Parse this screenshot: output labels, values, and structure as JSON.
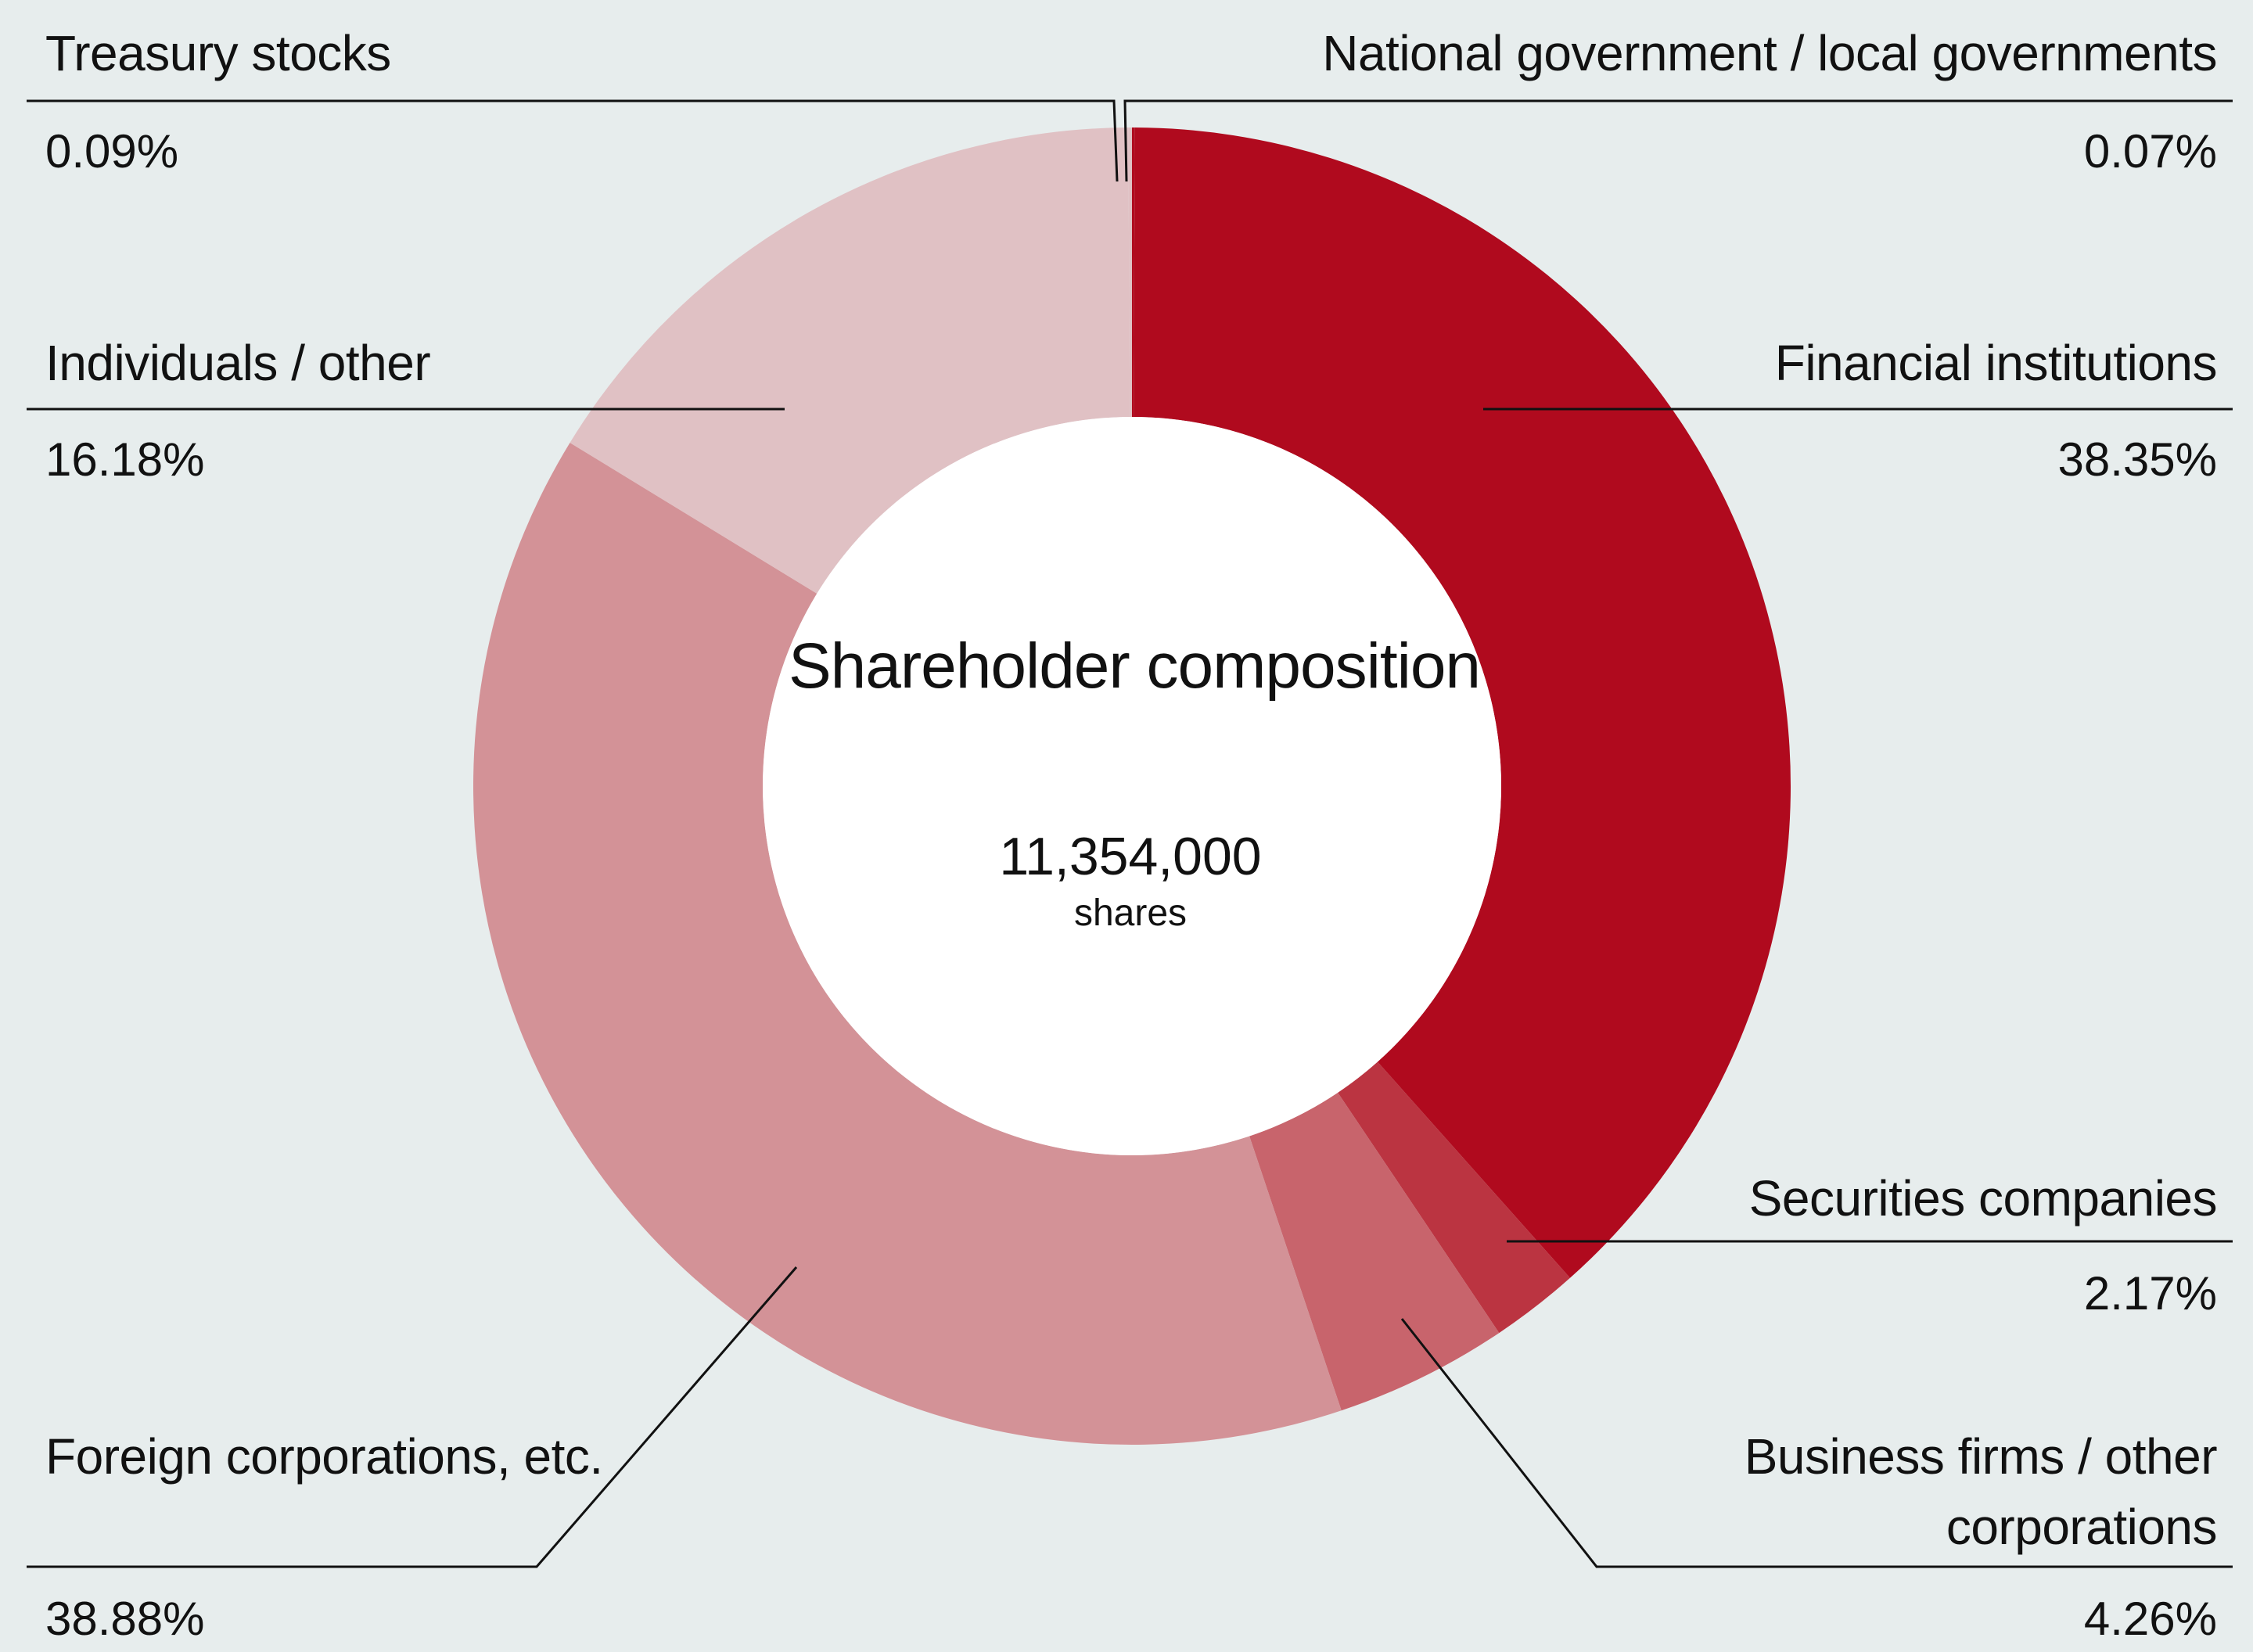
{
  "chart_data": {
    "type": "pie",
    "donut": true,
    "center": {
      "title": "Shareholder composition",
      "value": "11,354,000",
      "unit": "shares"
    },
    "slices": [
      {
        "label": "National government / local governments",
        "value": 0.07,
        "display": "0.07%",
        "color": "#b00a1e"
      },
      {
        "label": "Financial institutions",
        "value": 38.35,
        "display": "38.35%",
        "color": "#b00a1e"
      },
      {
        "label": "Securities companies",
        "value": 2.17,
        "display": "2.17%",
        "color": "#bb3441"
      },
      {
        "label": "Business firms / other corporations",
        "value": 4.26,
        "display": "4.26%",
        "color": "#c8646c"
      },
      {
        "label": "Foreign corporations, etc.",
        "value": 38.88,
        "display": "38.88%",
        "color": "#d39297"
      },
      {
        "label": "Individuals / other",
        "value": 16.18,
        "display": "16.18%",
        "color": "#e0c1c4"
      },
      {
        "label": "Treasury stocks",
        "value": 0.09,
        "display": "0.09%",
        "color": "#e0c1c4"
      }
    ],
    "legend": "callouts"
  },
  "colors": {
    "background": "#e7eded",
    "hole": "#ffffff",
    "leader": "#111111"
  }
}
